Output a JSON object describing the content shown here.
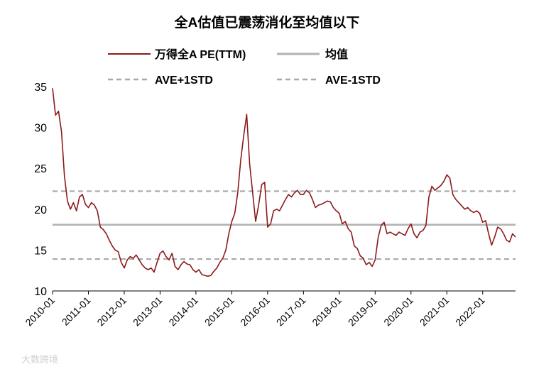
{
  "chart_data": {
    "type": "line",
    "title": "全A估值已震荡消化至均值以下",
    "xlabel": "",
    "ylabel": "",
    "ylim": [
      10,
      35
    ],
    "yticks": [
      10,
      15,
      20,
      25,
      30,
      35
    ],
    "xlim": [
      "2010-01",
      "2022-12"
    ],
    "xticks": [
      "2010-01",
      "2011-01",
      "2012-01",
      "2013-01",
      "2014-01",
      "2015-01",
      "2016-01",
      "2017-01",
      "2018-01",
      "2019-01",
      "2020-01",
      "2021-01",
      "2022-01"
    ],
    "grid": false,
    "legend_position": "top",
    "series": [
      {
        "name": "万得全A PE(TTM)",
        "color": "#8b1a1a",
        "style": "solid",
        "points": [
          [
            "2010-01",
            34.8
          ],
          [
            "2010-02",
            31.5
          ],
          [
            "2010-03",
            32.0
          ],
          [
            "2010-04",
            29.5
          ],
          [
            "2010-05",
            24.0
          ],
          [
            "2010-06",
            21.0
          ],
          [
            "2010-07",
            20.0
          ],
          [
            "2010-08",
            20.8
          ],
          [
            "2010-09",
            19.8
          ],
          [
            "2010-10",
            21.5
          ],
          [
            "2010-11",
            21.8
          ],
          [
            "2010-12",
            20.6
          ],
          [
            "2011-01",
            20.2
          ],
          [
            "2011-02",
            20.8
          ],
          [
            "2011-03",
            20.5
          ],
          [
            "2011-04",
            19.8
          ],
          [
            "2011-05",
            17.8
          ],
          [
            "2011-06",
            17.5
          ],
          [
            "2011-07",
            17.0
          ],
          [
            "2011-08",
            16.2
          ],
          [
            "2011-09",
            15.5
          ],
          [
            "2011-10",
            15.0
          ],
          [
            "2011-11",
            14.8
          ],
          [
            "2011-12",
            13.5
          ],
          [
            "2012-01",
            12.8
          ],
          [
            "2012-02",
            13.8
          ],
          [
            "2012-03",
            14.2
          ],
          [
            "2012-04",
            14.0
          ],
          [
            "2012-05",
            14.4
          ],
          [
            "2012-06",
            13.8
          ],
          [
            "2012-07",
            13.2
          ],
          [
            "2012-08",
            12.8
          ],
          [
            "2012-09",
            12.6
          ],
          [
            "2012-10",
            12.8
          ],
          [
            "2012-11",
            12.3
          ],
          [
            "2012-12",
            13.5
          ],
          [
            "2013-01",
            14.6
          ],
          [
            "2013-02",
            14.9
          ],
          [
            "2013-03",
            14.2
          ],
          [
            "2013-04",
            13.8
          ],
          [
            "2013-05",
            14.6
          ],
          [
            "2013-06",
            13.0
          ],
          [
            "2013-07",
            12.6
          ],
          [
            "2013-08",
            13.2
          ],
          [
            "2013-09",
            13.6
          ],
          [
            "2013-10",
            13.3
          ],
          [
            "2013-11",
            13.2
          ],
          [
            "2013-12",
            12.6
          ],
          [
            "2014-01",
            12.3
          ],
          [
            "2014-02",
            12.6
          ],
          [
            "2014-03",
            12.0
          ],
          [
            "2014-04",
            11.9
          ],
          [
            "2014-05",
            11.8
          ],
          [
            "2014-06",
            11.9
          ],
          [
            "2014-07",
            12.4
          ],
          [
            "2014-08",
            12.8
          ],
          [
            "2014-09",
            13.5
          ],
          [
            "2014-10",
            14.0
          ],
          [
            "2014-11",
            15.0
          ],
          [
            "2014-12",
            17.0
          ],
          [
            "2015-01",
            18.5
          ],
          [
            "2015-02",
            19.5
          ],
          [
            "2015-03",
            22.0
          ],
          [
            "2015-04",
            26.0
          ],
          [
            "2015-05",
            29.0
          ],
          [
            "2015-06",
            31.6
          ],
          [
            "2015-07",
            25.5
          ],
          [
            "2015-08",
            22.0
          ],
          [
            "2015-09",
            18.5
          ],
          [
            "2015-10",
            20.5
          ],
          [
            "2015-11",
            23.0
          ],
          [
            "2015-12",
            23.3
          ],
          [
            "2016-01",
            17.8
          ],
          [
            "2016-02",
            18.2
          ],
          [
            "2016-03",
            19.8
          ],
          [
            "2016-04",
            20.0
          ],
          [
            "2016-05",
            19.8
          ],
          [
            "2016-06",
            20.5
          ],
          [
            "2016-07",
            21.2
          ],
          [
            "2016-08",
            21.8
          ],
          [
            "2016-09",
            21.5
          ],
          [
            "2016-10",
            22.0
          ],
          [
            "2016-11",
            22.3
          ],
          [
            "2016-12",
            21.8
          ],
          [
            "2017-01",
            21.8
          ],
          [
            "2017-02",
            22.3
          ],
          [
            "2017-03",
            22.0
          ],
          [
            "2017-04",
            21.2
          ],
          [
            "2017-05",
            20.2
          ],
          [
            "2017-06",
            20.5
          ],
          [
            "2017-07",
            20.6
          ],
          [
            "2017-08",
            20.8
          ],
          [
            "2017-09",
            21.0
          ],
          [
            "2017-10",
            20.9
          ],
          [
            "2017-11",
            20.2
          ],
          [
            "2017-12",
            19.8
          ],
          [
            "2018-01",
            19.5
          ],
          [
            "2018-02",
            18.2
          ],
          [
            "2018-03",
            18.5
          ],
          [
            "2018-04",
            17.6
          ],
          [
            "2018-05",
            17.2
          ],
          [
            "2018-06",
            15.5
          ],
          [
            "2018-07",
            15.2
          ],
          [
            "2018-08",
            14.3
          ],
          [
            "2018-09",
            14.0
          ],
          [
            "2018-10",
            13.2
          ],
          [
            "2018-11",
            13.5
          ],
          [
            "2018-12",
            13.0
          ],
          [
            "2019-01",
            13.8
          ],
          [
            "2019-02",
            16.5
          ],
          [
            "2019-03",
            18.0
          ],
          [
            "2019-04",
            18.4
          ],
          [
            "2019-05",
            17.0
          ],
          [
            "2019-06",
            17.2
          ],
          [
            "2019-07",
            17.0
          ],
          [
            "2019-08",
            16.8
          ],
          [
            "2019-09",
            17.2
          ],
          [
            "2019-10",
            17.0
          ],
          [
            "2019-11",
            16.8
          ],
          [
            "2019-12",
            17.6
          ],
          [
            "2020-01",
            18.2
          ],
          [
            "2020-02",
            17.0
          ],
          [
            "2020-03",
            16.5
          ],
          [
            "2020-04",
            17.2
          ],
          [
            "2020-05",
            17.4
          ],
          [
            "2020-06",
            18.0
          ],
          [
            "2020-07",
            21.5
          ],
          [
            "2020-08",
            22.8
          ],
          [
            "2020-09",
            22.3
          ],
          [
            "2020-10",
            22.6
          ],
          [
            "2020-11",
            22.9
          ],
          [
            "2020-12",
            23.4
          ],
          [
            "2021-01",
            24.2
          ],
          [
            "2021-02",
            23.8
          ],
          [
            "2021-03",
            21.8
          ],
          [
            "2021-04",
            21.2
          ],
          [
            "2021-05",
            20.8
          ],
          [
            "2021-06",
            20.4
          ],
          [
            "2021-07",
            20.0
          ],
          [
            "2021-08",
            20.2
          ],
          [
            "2021-09",
            19.8
          ],
          [
            "2021-10",
            19.6
          ],
          [
            "2021-11",
            19.8
          ],
          [
            "2021-12",
            19.5
          ],
          [
            "2022-01",
            18.4
          ],
          [
            "2022-02",
            18.6
          ],
          [
            "2022-03",
            17.0
          ],
          [
            "2022-04",
            15.6
          ],
          [
            "2022-05",
            16.6
          ],
          [
            "2022-06",
            17.8
          ],
          [
            "2022-07",
            17.6
          ],
          [
            "2022-08",
            17.0
          ],
          [
            "2022-09",
            16.2
          ],
          [
            "2022-10",
            16.0
          ],
          [
            "2022-11",
            17.0
          ],
          [
            "2022-12",
            16.6
          ]
        ]
      },
      {
        "name": "均值",
        "color": "#b3b3b3",
        "style": "solid",
        "value": 18.1
      },
      {
        "name": "AVE+1STD",
        "color": "#a8a8a8",
        "style": "dashed",
        "value": 22.2
      },
      {
        "name": "AVE-1STD",
        "color": "#a8a8a8",
        "style": "dashed",
        "value": 13.9
      }
    ]
  },
  "watermark": "大数跨境"
}
